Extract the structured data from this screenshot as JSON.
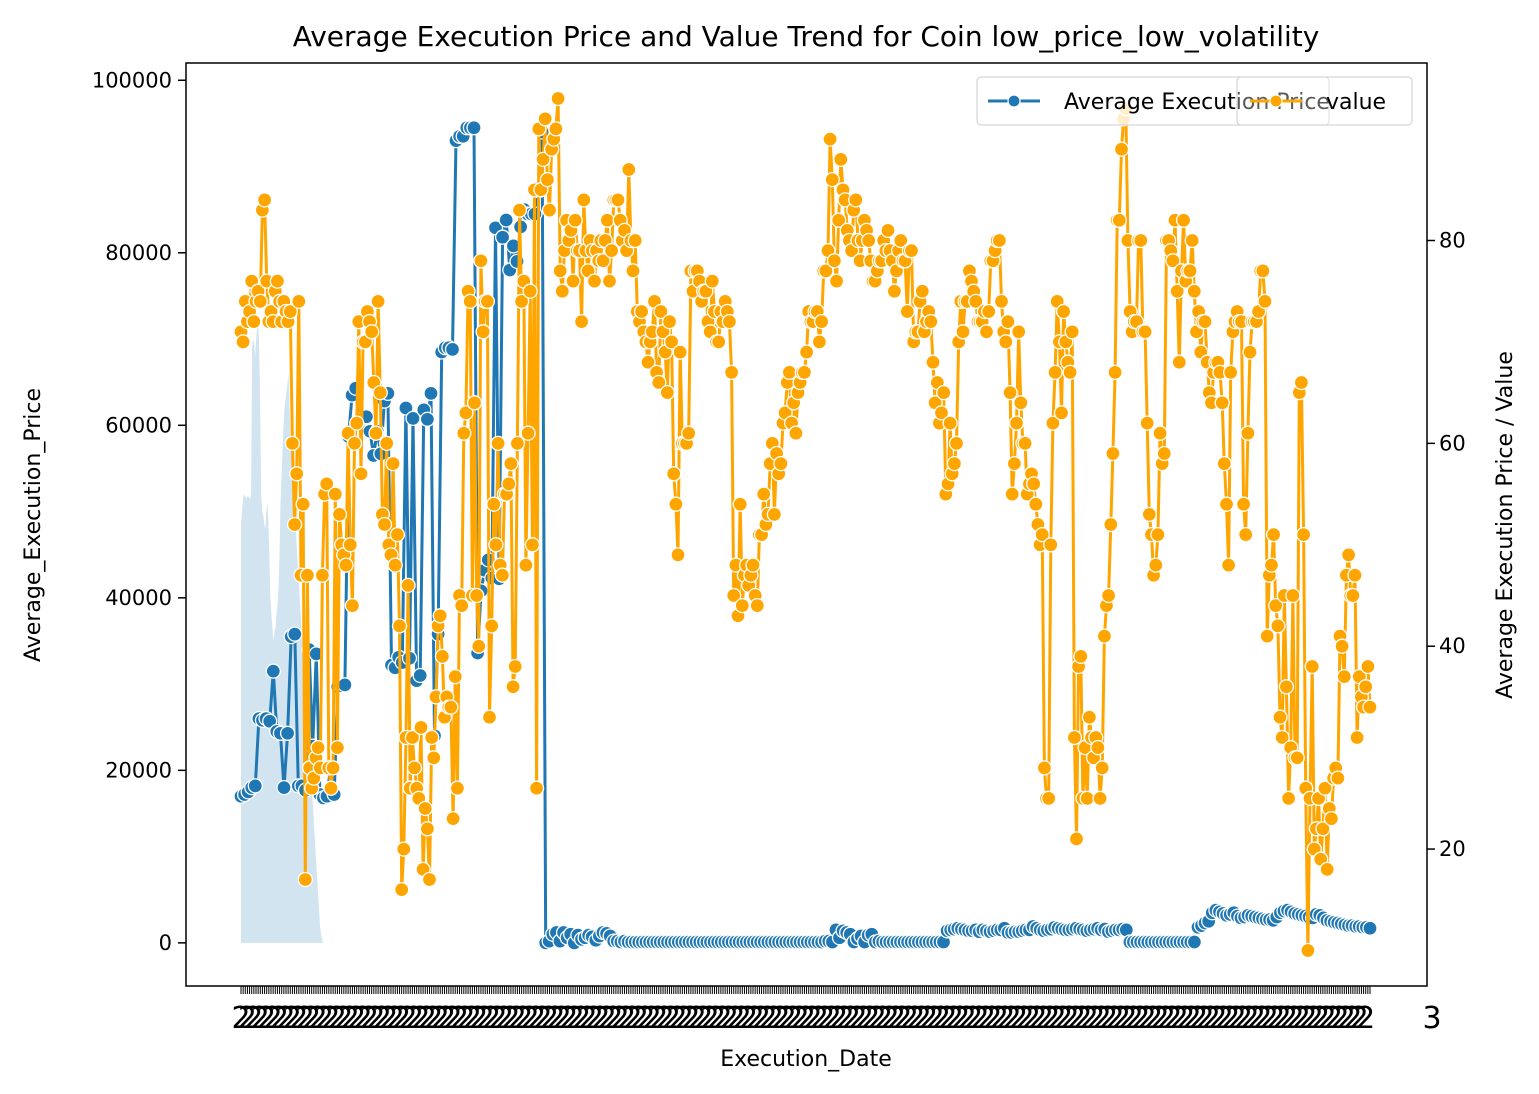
{
  "chart_data": {
    "type": "line",
    "title": "Average Execution Price and Value Trend for Coin low_price_low_volatility",
    "xlabel": "Execution_Date",
    "ylabel_left": "Average_Execution_Price",
    "ylabel_right": "Average Execution Price / Value",
    "ylim_left": [
      -5000,
      102000
    ],
    "ylim_right": [
      6.5,
      97.5
    ],
    "yticks_left": [
      "0",
      "20000",
      "40000",
      "60000",
      "80000",
      "100000"
    ],
    "yticks_right": [
      "20",
      "40",
      "60",
      "80"
    ],
    "xtick_text": "2",
    "xtick_end_text": "3",
    "legend": {
      "placement": "top-right",
      "entries": [
        "Average Execution Price",
        "value"
      ]
    },
    "colors": {
      "avg_price": "#1f77b4",
      "value": "#ffa500",
      "band": "#1f77b4"
    },
    "series": [
      {
        "name": "Average Execution Price",
        "axis": "left",
        "values": [
          17000,
          17200,
          17500,
          18000,
          18200,
          26000,
          25800,
          26000,
          25700,
          31500,
          24500,
          24300,
          18000,
          24300,
          35500,
          35800,
          18200,
          18200,
          17700,
          34000,
          22800,
          33500,
          17200,
          16800,
          17000,
          20400,
          17200,
          29700,
          29800,
          29900,
          58700,
          63500,
          64300,
          60200,
          60800,
          61000,
          59300,
          56500,
          59300,
          56700,
          62800,
          63700,
          32200,
          31900,
          33100,
          32500,
          62000,
          33000,
          60800,
          30400,
          31000,
          61800,
          60700,
          63700,
          24000,
          35800,
          68500,
          69000,
          69000,
          68800,
          93000,
          93500,
          93500,
          94500,
          94500,
          94500,
          33600,
          40800,
          43200,
          44400,
          42300,
          82900,
          42200,
          81800,
          83800,
          78000,
          80800,
          79000,
          83000,
          85000,
          84500,
          84500,
          84500,
          87200,
          94000,
          0,
          200,
          1000,
          1200,
          200,
          1200,
          600,
          1000,
          0,
          900,
          400,
          600,
          900,
          700,
          300,
          800,
          1200,
          1100,
          800,
          200,
          200,
          100,
          200,
          100,
          100,
          100,
          100,
          100,
          100,
          100,
          100,
          100,
          100,
          100,
          100,
          100,
          100,
          100,
          100,
          100,
          100,
          100,
          100,
          100,
          100,
          100,
          100,
          100,
          100,
          100,
          100,
          100,
          100,
          100,
          100,
          100,
          100,
          100,
          100,
          100,
          100,
          100,
          100,
          100,
          100,
          100,
          100,
          100,
          100,
          100,
          100,
          100,
          100,
          100,
          100,
          100,
          100,
          100,
          200,
          200,
          100,
          1500,
          600,
          1400,
          1200,
          1000,
          100,
          500,
          800,
          100,
          900,
          1000,
          100,
          200,
          100,
          100,
          100,
          100,
          100,
          100,
          100,
          100,
          100,
          100,
          100,
          100,
          100,
          100,
          100,
          100,
          100,
          100,
          1400,
          1500,
          1600,
          1700,
          1600,
          1500,
          1400,
          1400,
          1500,
          1300,
          1500,
          1400,
          1300,
          1400,
          1500,
          1500,
          1700,
          1200,
          1200,
          1300,
          1300,
          1400,
          1500,
          1500,
          1900,
          1700,
          1500,
          1400,
          1500,
          1600,
          1800,
          1700,
          1600,
          1500,
          1500,
          1600,
          1700,
          1600,
          1500,
          1400,
          1500,
          1600,
          1700,
          1500,
          1600,
          1300,
          1400,
          1500,
          1500,
          1600,
          1500,
          100,
          100,
          100,
          100,
          100,
          100,
          100,
          100,
          100,
          100,
          100,
          100,
          100,
          100,
          100,
          100,
          100,
          100,
          100,
          1800,
          2000,
          2300,
          2500,
          3500,
          3800,
          3600,
          3400,
          3200,
          3300,
          3500,
          3100,
          2900,
          3000,
          3200,
          3100,
          3000,
          2900,
          2800,
          2700,
          2700,
          2600,
          3000,
          3500,
          3700,
          3800,
          3600,
          3400,
          3300,
          3200,
          3100,
          3000,
          2900,
          3300,
          3200,
          2900,
          2600,
          2500,
          2400,
          2300,
          2200,
          2100,
          2000,
          2000,
          1900,
          1900,
          1800,
          1800,
          1700
        ]
      },
      {
        "name": "value",
        "axis": "right",
        "values": [
          71,
          70,
          74,
          72,
          73,
          76,
          72,
          74,
          75,
          74,
          83,
          84,
          76,
          72,
          73,
          72,
          75,
          76,
          74,
          72,
          74,
          73,
          72,
          73,
          60,
          52,
          57,
          74,
          47,
          54,
          17,
          47,
          28,
          26,
          27,
          29,
          30,
          28,
          47,
          55,
          56,
          28,
          26,
          28,
          55,
          30,
          53,
          50,
          49,
          48,
          61,
          50,
          44,
          60,
          62,
          72,
          57,
          70,
          70,
          73,
          72,
          71,
          66,
          61,
          74,
          65,
          53,
          52,
          60,
          50,
          49,
          58,
          48,
          51,
          42,
          16,
          20,
          31,
          46,
          26,
          31,
          28,
          26,
          25,
          32,
          18,
          24,
          22,
          17,
          31,
          29,
          35,
          42,
          43,
          39,
          33,
          35,
          34,
          34,
          23,
          37,
          26,
          45,
          44,
          61,
          63,
          75,
          74,
          45,
          64,
          45,
          40,
          78,
          71,
          74,
          74,
          33,
          42,
          54,
          50,
          60,
          48,
          47,
          55,
          55,
          56,
          58,
          36,
          38,
          60,
          83,
          74,
          76,
          48,
          61,
          75,
          50,
          85,
          26,
          91,
          85,
          88,
          92,
          86,
          83,
          89,
          90,
          91,
          94,
          77,
          75,
          79,
          82,
          80,
          81,
          76,
          82,
          79,
          79,
          72,
          84,
          79,
          77,
          80,
          79,
          76,
          79,
          78,
          80,
          78,
          80,
          82,
          76,
          79,
          84,
          84,
          84,
          82,
          80,
          81,
          79,
          87,
          80,
          77,
          80,
          73,
          72,
          73,
          71,
          70,
          68,
          70,
          71,
          74,
          67,
          66,
          73,
          71,
          69,
          65,
          72,
          70,
          57,
          54,
          49,
          69,
          60,
          60,
          60,
          61,
          77,
          75,
          77,
          77,
          76,
          74,
          75,
          75,
          72,
          71,
          76,
          73,
          70,
          70,
          73,
          72,
          74,
          73,
          72,
          67,
          45,
          48,
          43,
          54,
          44,
          47,
          48,
          46,
          47,
          48,
          45,
          44,
          51,
          51,
          55,
          52,
          53,
          58,
          60,
          53,
          59,
          57,
          58,
          62,
          63,
          66,
          67,
          62,
          64,
          61,
          65,
          66,
          67,
          67,
          69,
          73,
          72,
          72,
          73,
          73,
          70,
          72,
          77,
          77,
          79,
          90,
          86,
          78,
          76,
          82,
          88,
          85,
          84,
          81,
          80,
          79,
          83,
          84,
          80,
          78,
          80,
          82,
          81,
          80,
          78,
          76,
          76,
          77,
          78,
          78,
          80,
          79,
          81,
          79,
          78,
          75,
          77,
          79,
          80,
          78,
          78,
          73,
          79,
          79,
          70,
          71,
          71,
          74,
          75,
          71,
          72,
          73,
          72,
          68,
          64,
          66,
          62,
          63,
          65,
          55,
          56,
          62,
          57,
          58,
          60,
          70,
          74,
          71,
          74,
          74,
          77,
          76,
          75,
          74,
          72,
          72,
          72,
          73,
          71,
          73,
          78,
          78,
          79,
          80,
          80,
          74,
          71,
          70,
          72,
          65,
          55,
          58,
          62,
          71,
          64,
          60,
          60,
          55,
          56,
          57,
          56,
          54,
          52,
          50,
          51,
          28,
          25,
          25,
          50,
          62,
          67,
          74,
          70,
          63,
          73,
          70,
          68,
          67,
          71,
          31,
          21,
          38,
          39,
          25,
          30,
          25,
          33,
          31,
          29,
          31,
          30,
          25,
          28,
          41,
          44,
          45,
          52,
          59,
          67,
          82,
          82,
          89,
          92,
          93,
          80,
          73,
          71,
          72,
          72,
          80,
          80,
          71,
          71,
          62,
          53,
          51,
          47,
          48,
          51,
          61,
          58,
          59,
          80,
          80,
          79,
          78,
          82,
          75,
          68,
          77,
          82,
          76,
          77,
          77,
          80,
          75,
          71,
          73,
          69,
          72,
          72,
          68,
          65,
          64,
          67,
          68,
          68,
          67,
          64,
          58,
          54,
          48,
          67,
          71,
          72,
          73,
          72,
          72,
          54,
          51,
          61,
          69,
          72,
          72,
          72,
          73,
          77,
          77,
          74,
          41,
          47,
          48,
          51,
          44,
          42,
          33,
          31,
          45,
          36,
          25,
          30,
          45,
          29,
          29,
          65,
          66,
          51,
          26,
          10,
          25,
          38,
          20,
          22,
          25,
          19,
          22,
          26,
          18,
          24,
          23,
          27,
          28,
          27,
          41,
          40,
          37,
          47,
          49,
          45,
          45,
          47,
          31,
          37,
          35,
          34,
          36,
          38,
          34
        ]
      },
      {
        "name": "band",
        "axis": "left",
        "lower": [
          0,
          0,
          0,
          0,
          0,
          0,
          0,
          0,
          0,
          0,
          0,
          0,
          0,
          0,
          0,
          0,
          0,
          0,
          0,
          0,
          0,
          0,
          0,
          0,
          0,
          0,
          0,
          0,
          0,
          0,
          0,
          0,
          0,
          0,
          0,
          0,
          0,
          0,
          0,
          0,
          0,
          0,
          0,
          0,
          0,
          0,
          0,
          0,
          0,
          0,
          0,
          0,
          0,
          0,
          0,
          0,
          0,
          0,
          0,
          0,
          0,
          0,
          0,
          0,
          0,
          0,
          0,
          0,
          0,
          0,
          0,
          0,
          0,
          0,
          0,
          0,
          0,
          0,
          0,
          0,
          0,
          0
        ],
        "upper": [
          48500,
          50000,
          51500,
          52000,
          51800,
          51500,
          51700,
          51800,
          51600,
          51500,
          52000,
          69000,
          70000,
          69500,
          68000,
          70000,
          71500,
          72000,
          69000,
          62000,
          52000,
          50000,
          49500,
          48500,
          48000,
          50000,
          51000,
          49000,
          45000,
          40000,
          38000,
          36500,
          35000,
          36000,
          36500,
          38000,
          39000,
          41000,
          45000,
          51000,
          54000,
          57000,
          60000,
          62000,
          63000,
          64000,
          65000,
          66000,
          62000,
          58000,
          56000,
          54000,
          52000,
          50000,
          48000,
          46000,
          44000,
          42000,
          40000,
          38000,
          36000,
          34000,
          33000,
          32000,
          30000,
          28000,
          26000,
          24000,
          22000,
          20000,
          18000,
          16000,
          14000,
          12000,
          10000,
          8000,
          6000,
          4000,
          2000,
          1000,
          500,
          0
        ]
      }
    ]
  }
}
